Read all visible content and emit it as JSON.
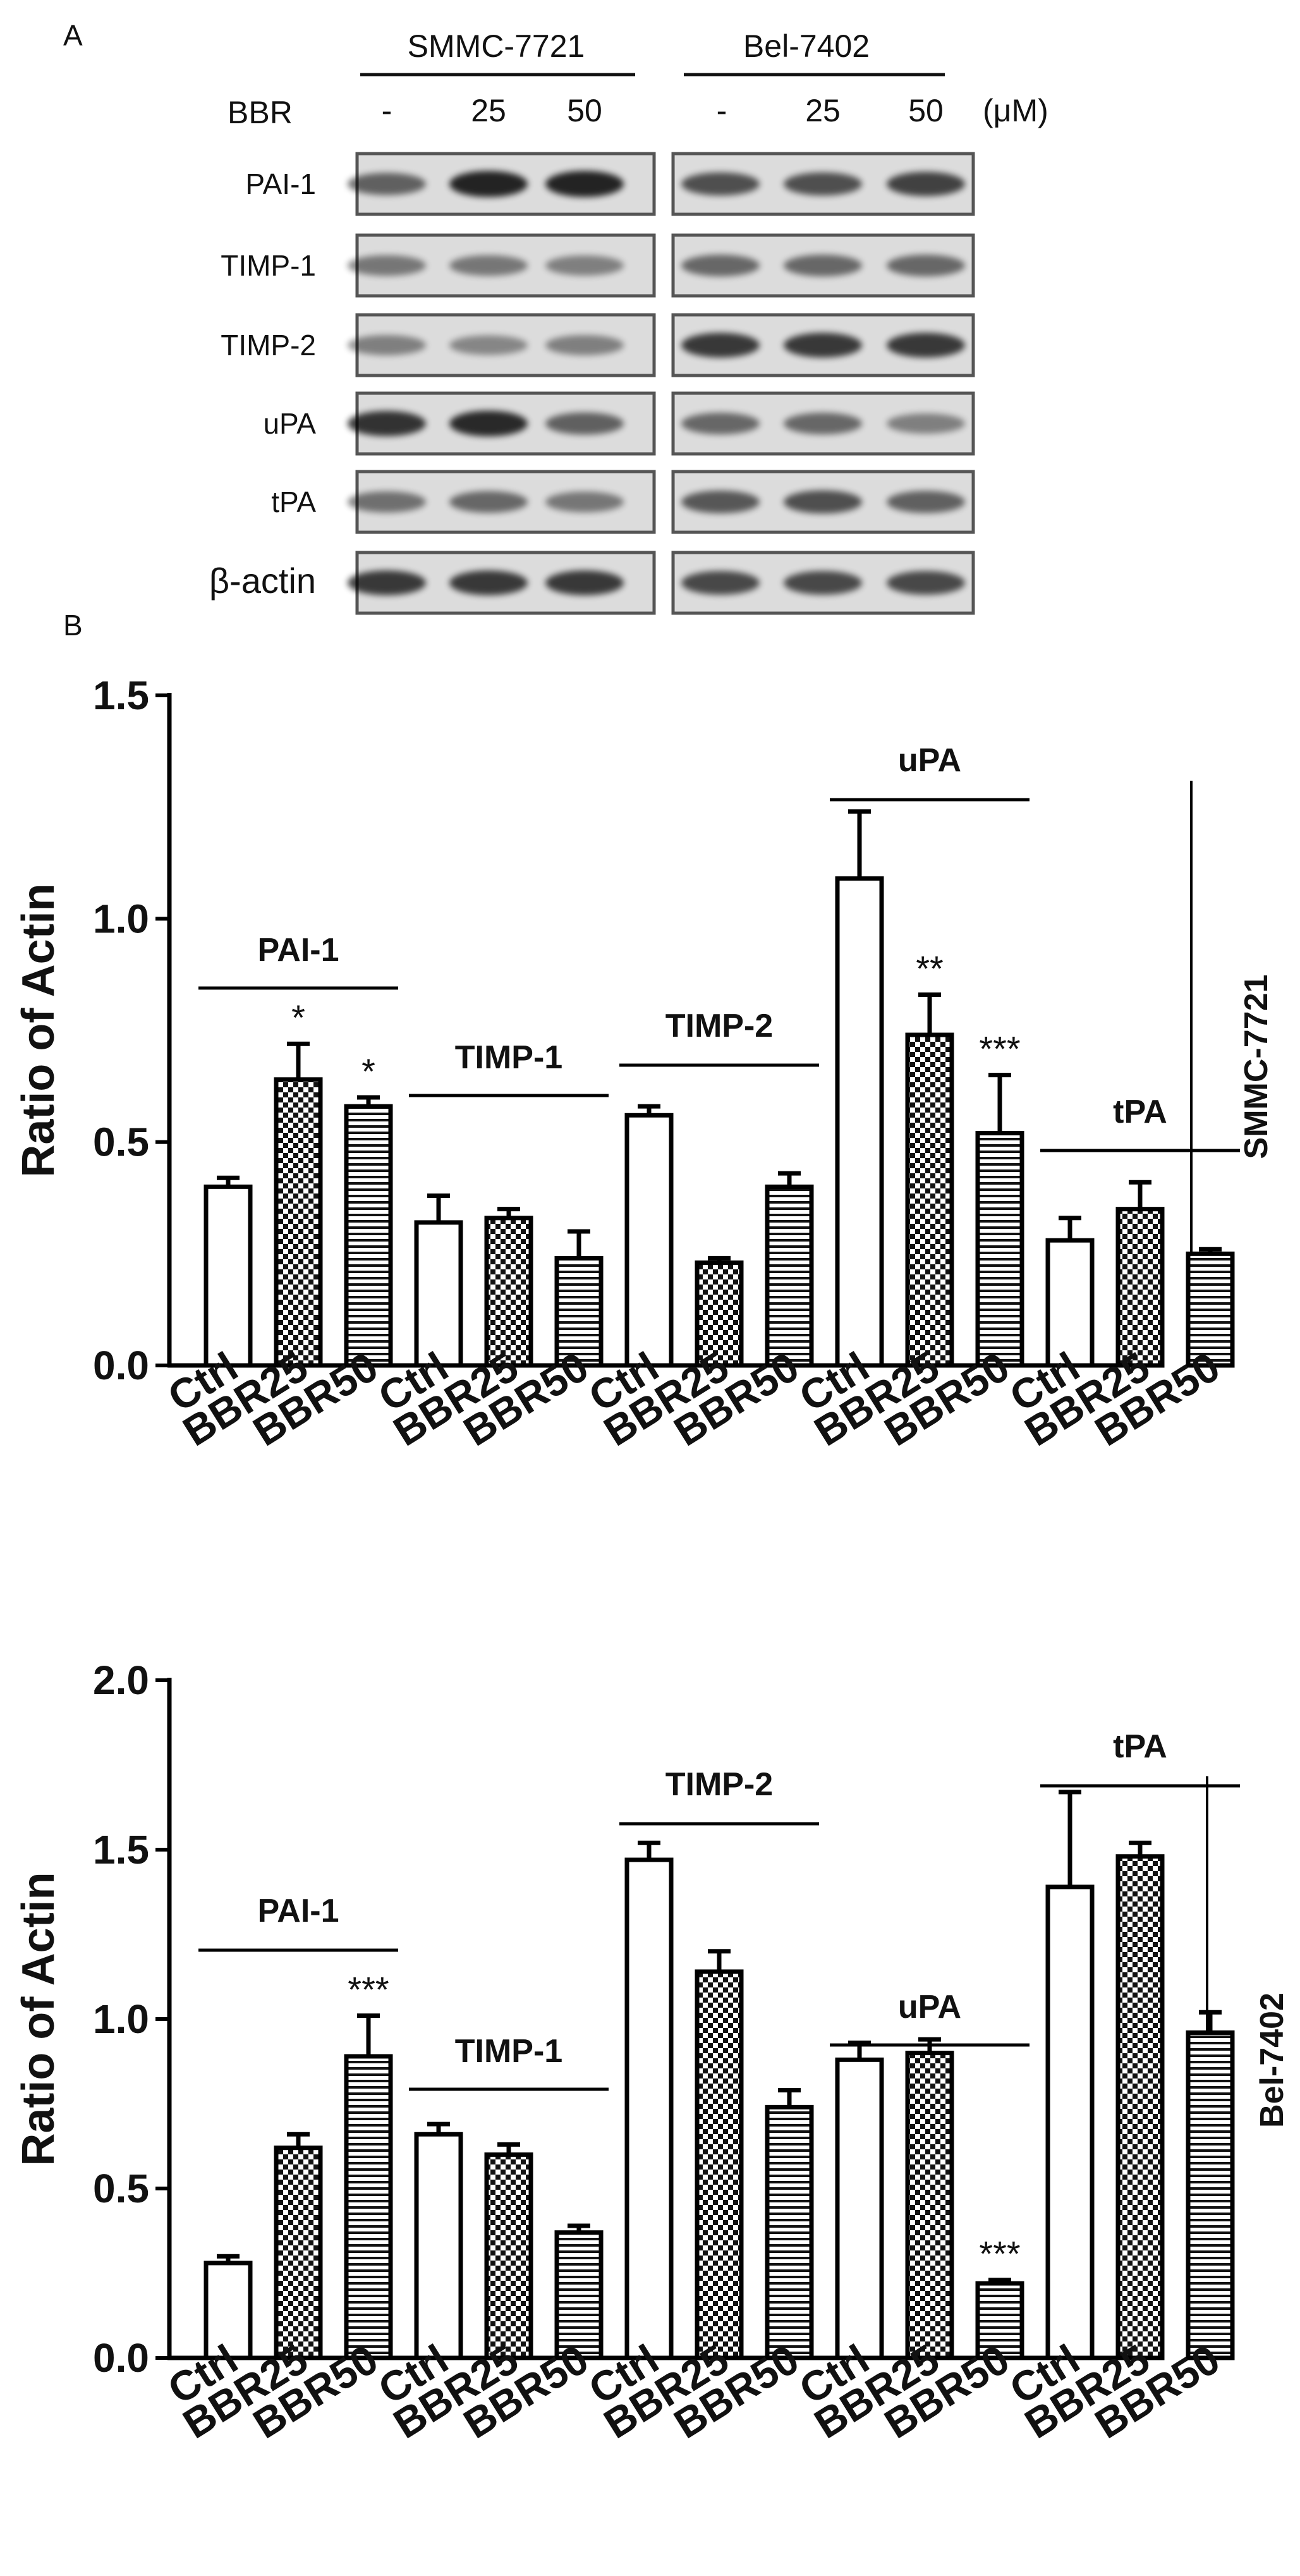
{
  "panel_a": {
    "label": "A",
    "cell_lines": [
      "SMMC-7721",
      "Bel-7402"
    ],
    "treatment_label": "BBR",
    "doses": [
      "-",
      "25",
      "50"
    ],
    "unit": "(μM)",
    "proteins": [
      "PAI-1",
      "TIMP-1",
      "TIMP-2",
      "uPA",
      "tPA",
      "β-actin"
    ]
  },
  "panel_b": {
    "label": "B"
  },
  "chart_data": [
    {
      "type": "bar",
      "title": "",
      "side_label": "SMMC-7721",
      "ylabel": "Ratio of Actin",
      "xlabel": "",
      "ylim": [
        0,
        1.5
      ],
      "yticks": [
        "0.0",
        "0.5",
        "1.0",
        "1.5"
      ],
      "groups": [
        {
          "name": "PAI-1",
          "categories": [
            "Ctrl",
            "BBR25",
            "BBR50"
          ],
          "values": [
            0.4,
            0.64,
            0.58
          ],
          "errors": [
            0.02,
            0.08,
            0.02
          ],
          "sig": [
            "",
            "*",
            "*"
          ]
        },
        {
          "name": "TIMP-1",
          "categories": [
            "Ctrl",
            "BBR25",
            "BBR50"
          ],
          "values": [
            0.32,
            0.33,
            0.24
          ],
          "errors": [
            0.06,
            0.02,
            0.06
          ],
          "sig": [
            "",
            "",
            ""
          ]
        },
        {
          "name": "TIMP-2",
          "categories": [
            "Ctrl",
            "BBR25",
            "BBR50"
          ],
          "values": [
            0.56,
            0.23,
            0.4
          ],
          "errors": [
            0.02,
            0.01,
            0.03
          ],
          "sig": [
            "",
            "",
            ""
          ]
        },
        {
          "name": "uPA",
          "categories": [
            "Ctrl",
            "BBR25",
            "BBR50"
          ],
          "values": [
            1.09,
            0.74,
            0.52
          ],
          "errors": [
            0.15,
            0.09,
            0.13
          ],
          "sig": [
            "",
            "**",
            "***"
          ]
        },
        {
          "name": "tPA",
          "categories": [
            "Ctrl",
            "BBR25",
            "BBR50"
          ],
          "values": [
            0.28,
            0.35,
            0.25
          ],
          "errors": [
            0.05,
            0.06,
            0.01
          ],
          "sig": [
            "",
            "",
            ""
          ]
        }
      ]
    },
    {
      "type": "bar",
      "title": "",
      "side_label": "Bel-7402",
      "ylabel": "Ratio of Actin",
      "xlabel": "",
      "ylim": [
        0,
        2.0
      ],
      "yticks": [
        "0.0",
        "0.5",
        "1.0",
        "1.5",
        "2.0"
      ],
      "groups": [
        {
          "name": "PAI-1",
          "categories": [
            "Ctrl",
            "BBR25",
            "BBR50"
          ],
          "values": [
            0.28,
            0.62,
            0.89
          ],
          "errors": [
            0.02,
            0.04,
            0.12
          ],
          "sig": [
            "",
            "",
            "***"
          ]
        },
        {
          "name": "TIMP-1",
          "categories": [
            "Ctrl",
            "BBR25",
            "BBR50"
          ],
          "values": [
            0.66,
            0.6,
            0.37
          ],
          "errors": [
            0.03,
            0.03,
            0.02
          ],
          "sig": [
            "",
            "",
            ""
          ]
        },
        {
          "name": "TIMP-2",
          "categories": [
            "Ctrl",
            "BBR25",
            "BBR50"
          ],
          "values": [
            1.47,
            1.14,
            0.74
          ],
          "errors": [
            0.05,
            0.06,
            0.05
          ],
          "sig": [
            "",
            "",
            ""
          ]
        },
        {
          "name": "uPA",
          "categories": [
            "Ctrl",
            "BBR25",
            "BBR50"
          ],
          "values": [
            0.88,
            0.9,
            0.22
          ],
          "errors": [
            0.05,
            0.04,
            0.01
          ],
          "sig": [
            "",
            "",
            "***"
          ]
        },
        {
          "name": "tPA",
          "categories": [
            "Ctrl",
            "BBR25",
            "BBR50"
          ],
          "values": [
            1.39,
            1.48,
            0.96
          ],
          "errors": [
            0.28,
            0.04,
            0.06
          ],
          "sig": [
            "",
            "",
            ""
          ]
        }
      ]
    }
  ]
}
